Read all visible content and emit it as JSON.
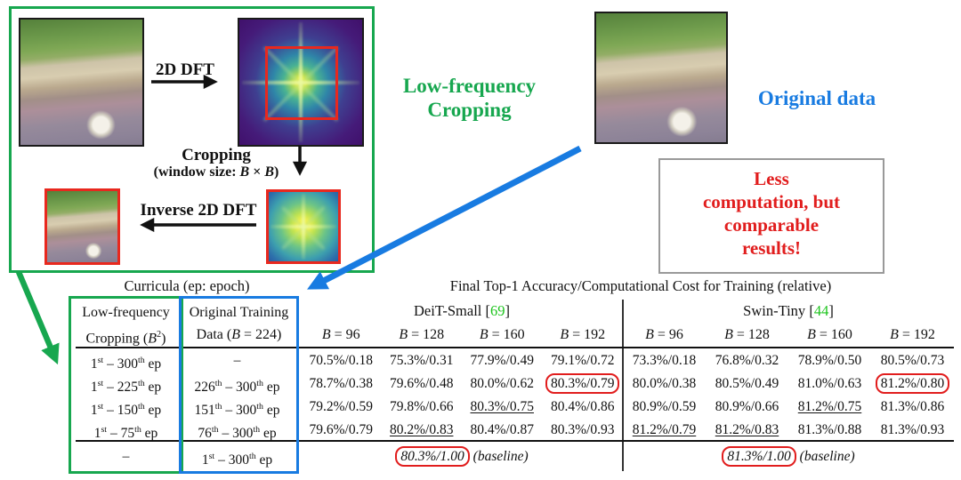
{
  "colors": {
    "green": "#17a74f",
    "blue": "#187be1",
    "red": "#e11d1d",
    "cite_green": "#1ec41e"
  },
  "figure": {
    "pipeline": {
      "dft_arrow_label": "2D DFT",
      "crop_arrow_label_line1": "Cropping",
      "crop_arrow_label_line2": "(window size: _B_ × _B_)",
      "inverse_arrow_label": "Inverse 2D DFT"
    },
    "captions": {
      "low_freq_line1": "Low-frequency",
      "low_freq_line2": "Cropping",
      "original_data": "Original data",
      "note_lines": [
        "Less",
        "computation, but",
        "comparable",
        "results!"
      ]
    }
  },
  "table": {
    "curricula_caption": "Curricula (ep: epoch)",
    "results_caption": "Final Top-1 Accuracy/Computational Cost for Training (relative)",
    "col_headers": {
      "crop_line1": "Low-frequency",
      "crop_line2": "Cropping (_B_^{2})",
      "orig_line1": "Original Training",
      "orig_line2": "Data (_B_ = 224)"
    },
    "groups": [
      {
        "name": "DeiT-Small",
        "cite": "69"
      },
      {
        "name": "Swin-Tiny",
        "cite": "44"
      }
    ],
    "b_headers": [
      "_B_ = 96",
      "_B_ = 128",
      "_B_ = 160",
      "_B_ = 192"
    ],
    "rows": [
      {
        "crop": "1^{st} – 300^{th} ep",
        "orig": "–",
        "deit": [
          "70.5%/0.18",
          "75.3%/0.31",
          "77.9%/0.49",
          "79.1%/0.72"
        ],
        "swin": [
          "73.3%/0.18",
          "76.8%/0.32",
          "78.9%/0.50",
          "80.5%/0.73"
        ]
      },
      {
        "crop": "1^{st} – 225^{th} ep",
        "orig": "226^{th} – 300^{th} ep",
        "deit": [
          "78.7%/0.38",
          "79.6%/0.48",
          "80.0%/0.62",
          "80.3%/0.79"
        ],
        "swin": [
          "80.0%/0.38",
          "80.5%/0.49",
          "81.0%/0.63",
          "81.2%/0.80"
        ]
      },
      {
        "crop": "1^{st} – 150^{th} ep",
        "orig": "151^{th} – 300^{th} ep",
        "deit": [
          "79.2%/0.59",
          "79.8%/0.66",
          "80.3%/0.75",
          "80.4%/0.86"
        ],
        "swin": [
          "80.9%/0.59",
          "80.9%/0.66",
          "81.2%/0.75",
          "81.3%/0.86"
        ]
      },
      {
        "crop": "1^{st} – 75^{th} ep",
        "orig": "76^{th} – 300^{th} ep",
        "deit": [
          "79.6%/0.79",
          "80.2%/0.83",
          "80.4%/0.87",
          "80.3%/0.93"
        ],
        "swin": [
          "81.2%/0.79",
          "81.2%/0.83",
          "81.3%/0.88",
          "81.3%/0.93"
        ]
      }
    ],
    "baseline_row": {
      "crop": "–",
      "orig": "1^{st} – 300^{th} ep",
      "deit": "80.3%/1.00",
      "swin": "81.3%/1.00",
      "suffix": "(baseline)"
    },
    "highlights": {
      "red_oval": [
        "rows.1.deit.3",
        "rows.1.swin.3",
        "baseline_row.deit",
        "baseline_row.swin"
      ],
      "underline": [
        "rows.2.deit.2",
        "rows.3.deit.1",
        "rows.2.swin.2",
        "rows.3.swin.0",
        "rows.3.swin.1"
      ]
    }
  }
}
